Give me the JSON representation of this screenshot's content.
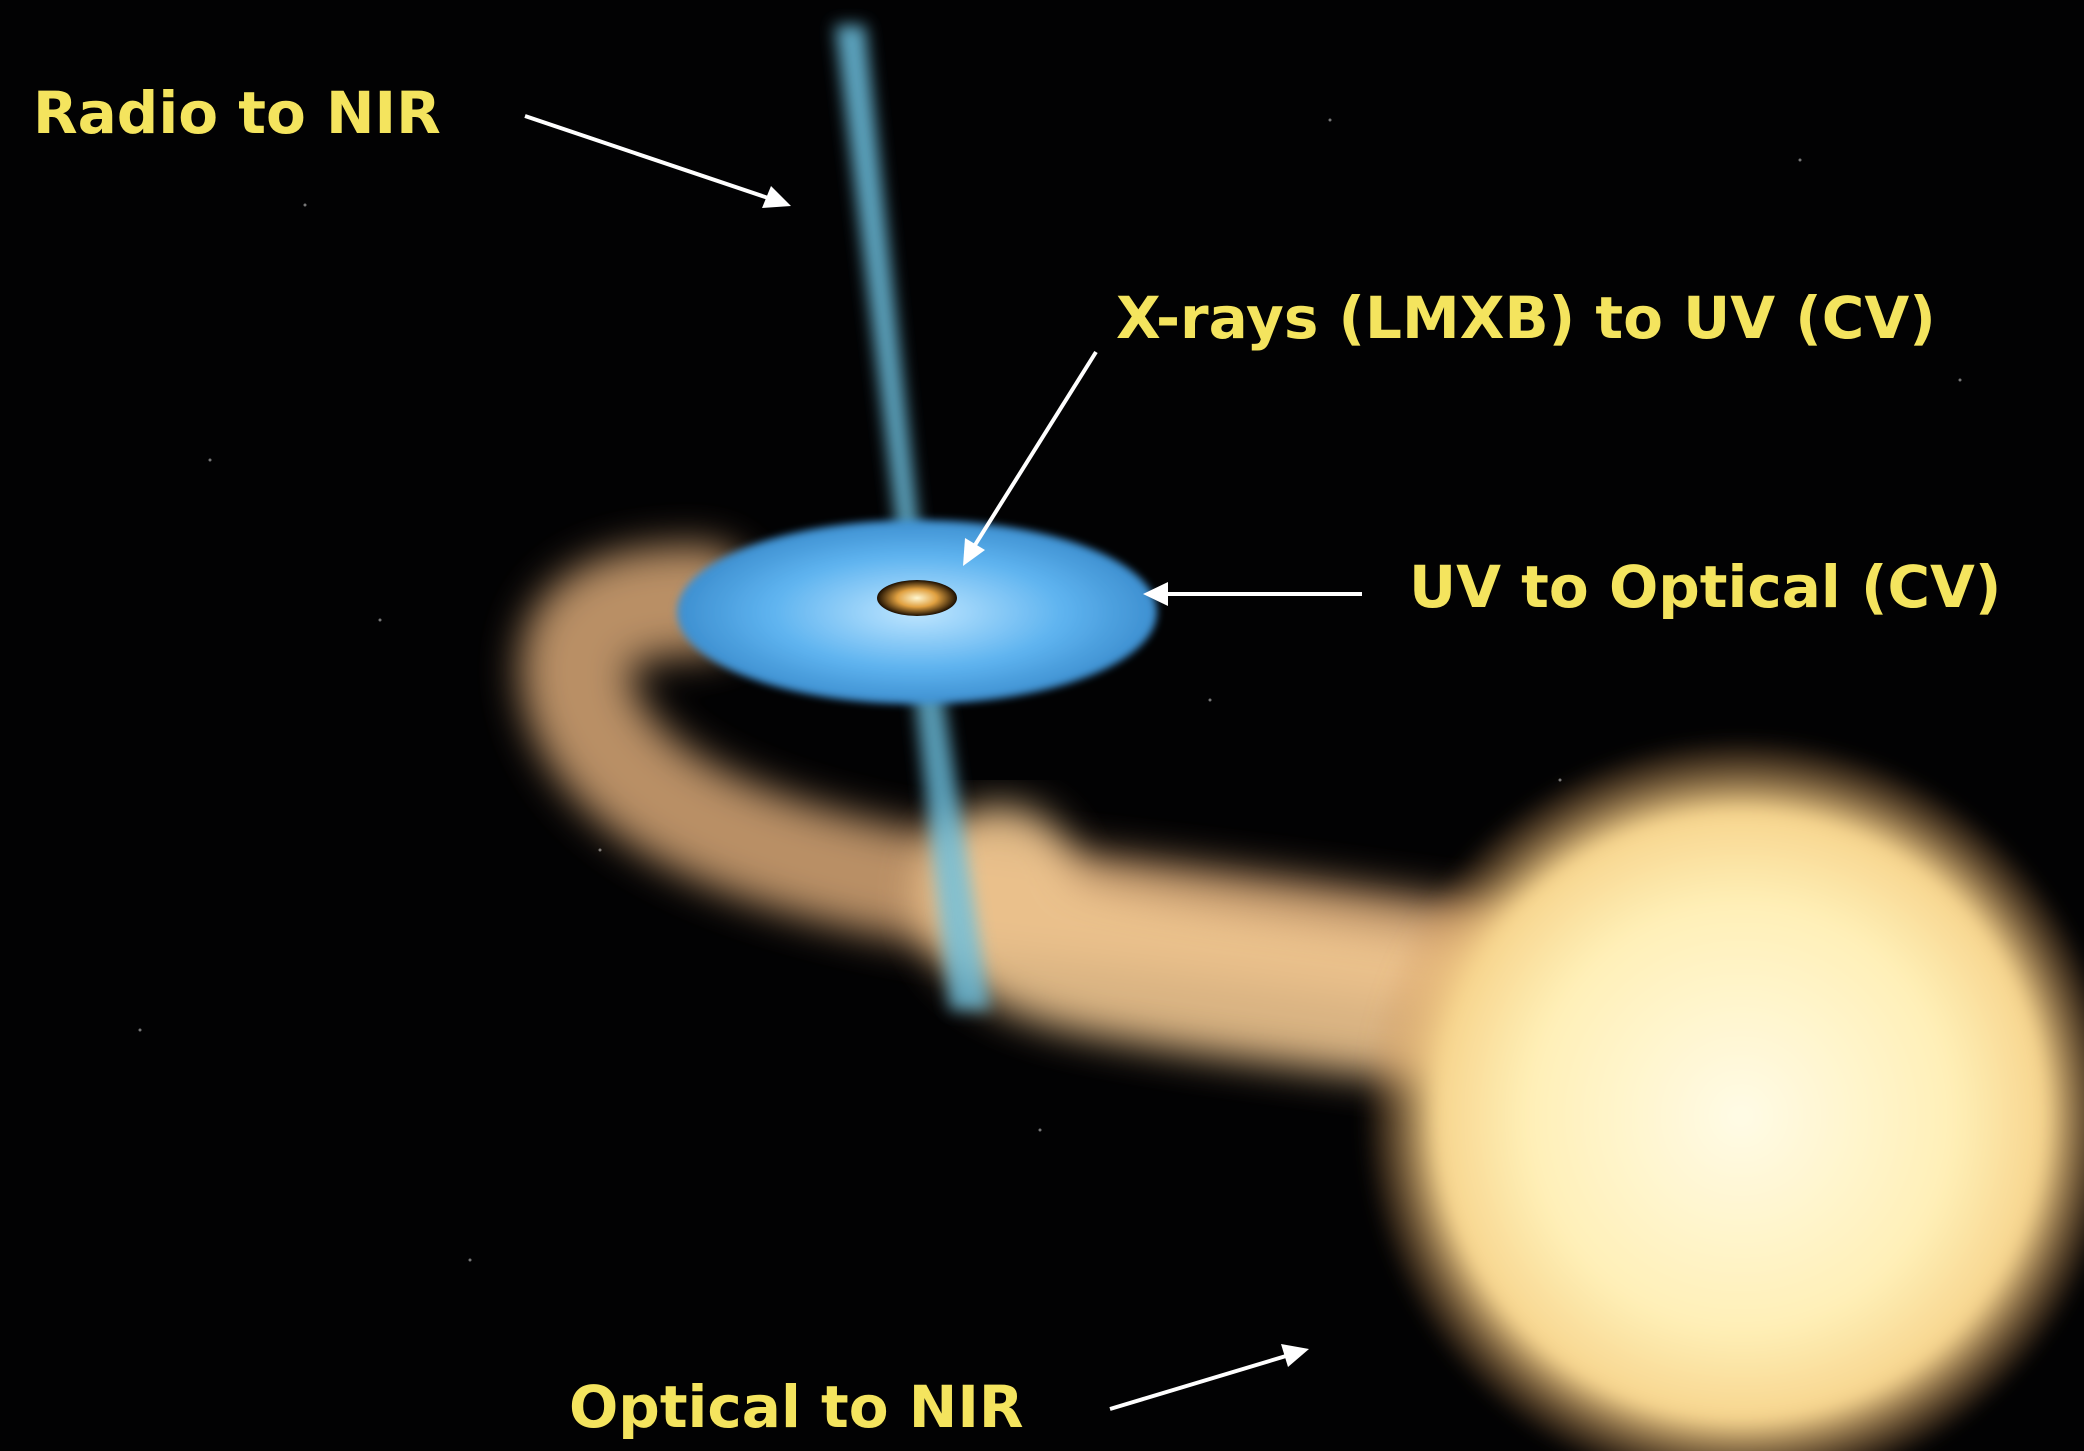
{
  "labels": [
    "Radio to NIR",
    "X-rays (LMXB) to UV (CV)",
    "UV to Optical (CV)",
    "Optical to NIR"
  ]
}
